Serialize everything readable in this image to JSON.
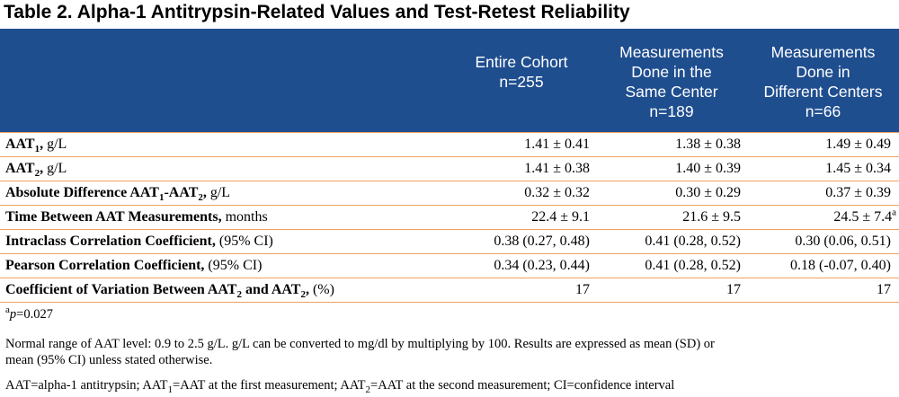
{
  "title": "Table 2. Alpha-1 Antitrypsin-Related Values and Test-Retest Reliability",
  "header": {
    "columns": [
      {
        "lines": [
          "Entire Cohort",
          "n=255"
        ]
      },
      {
        "lines": [
          "Measurements",
          "Done in the",
          "Same Center",
          "n=189"
        ]
      },
      {
        "lines": [
          "Measurements",
          "Done in",
          "Different Centers",
          "n=66"
        ]
      }
    ]
  },
  "rows": [
    {
      "label_a": "AAT",
      "label_sub1": "1",
      "label_b": ",",
      "label_c": "",
      "label_sub2": "",
      "label_d": "",
      "unit": " g/L",
      "values": [
        "1.41 ± 0.41",
        "1.38 ± 0.38",
        "1.49 ± 0.49"
      ],
      "sup": ""
    },
    {
      "label_a": "AAT",
      "label_sub1": "2",
      "label_b": ",",
      "label_c": "",
      "label_sub2": "",
      "label_d": "",
      "unit": " g/L",
      "values": [
        "1.41 ± 0.38",
        "1.40 ± 0.39",
        "1.45 ± 0.34"
      ],
      "sup": ""
    },
    {
      "label_a": "Absolute Difference AAT",
      "label_sub1": "1",
      "label_b": "-AAT",
      "label_c": "",
      "label_sub2": "2",
      "label_d": ",",
      "unit": " g/L",
      "values": [
        "0.32 ± 0.32",
        "0.30 ± 0.29",
        "0.37 ± 0.39"
      ],
      "sup": ""
    },
    {
      "label_a": "Time Between AAT Measurements,",
      "label_sub1": "",
      "label_b": "",
      "label_c": "",
      "label_sub2": "",
      "label_d": "",
      "unit": " months",
      "values": [
        "22.4 ± 9.1",
        "21.6 ± 9.5",
        "24.5 ± 7.4"
      ],
      "sup": "a"
    },
    {
      "label_a": "Intraclass Correlation Coefficient,",
      "label_sub1": "",
      "label_b": "",
      "label_c": "",
      "label_sub2": "",
      "label_d": "",
      "unit": " (95% CI)",
      "values": [
        "0.38 (0.27, 0.48)",
        "0.41 (0.28, 0.52)",
        "0.30 (0.06, 0.51)"
      ],
      "sup": ""
    },
    {
      "label_a": "Pearson Correlation Coefficient,",
      "label_sub1": "",
      "label_b": "",
      "label_c": "",
      "label_sub2": "",
      "label_d": "",
      "unit": " (95% CI)",
      "values": [
        "0.34 (0.23, 0.44)",
        "0.41 (0.28, 0.52)",
        "0.18 (-0.07, 0.40)"
      ],
      "sup": ""
    },
    {
      "label_a": "Coefficient of Variation Between AAT",
      "label_sub1": "2",
      "label_b": " and AAT",
      "label_c": "",
      "label_sub2": "2",
      "label_d": ",",
      "unit": " (%)",
      "values": [
        "17",
        "17",
        "17"
      ],
      "sup": ""
    }
  ],
  "notes": {
    "footnote_sup": "a",
    "footnote_p": "p",
    "footnote_rest": "=0.027",
    "normal_range_line1": "Normal range of AAT level: 0.9 to 2.5 g/L. g/L can be converted to mg/dl by multiplying by 100. Results are expressed as mean (SD) or",
    "normal_range_line2": "mean (95% CI) unless stated otherwise.",
    "abbrev_a": "AAT=alpha-1 antitrypsin; AAT",
    "abbrev_sub1": "1",
    "abbrev_b": "=AAT at the first measurement; AAT",
    "abbrev_sub2": "2",
    "abbrev_c": "=AAT at the second measurement; CI=confidence interval"
  }
}
